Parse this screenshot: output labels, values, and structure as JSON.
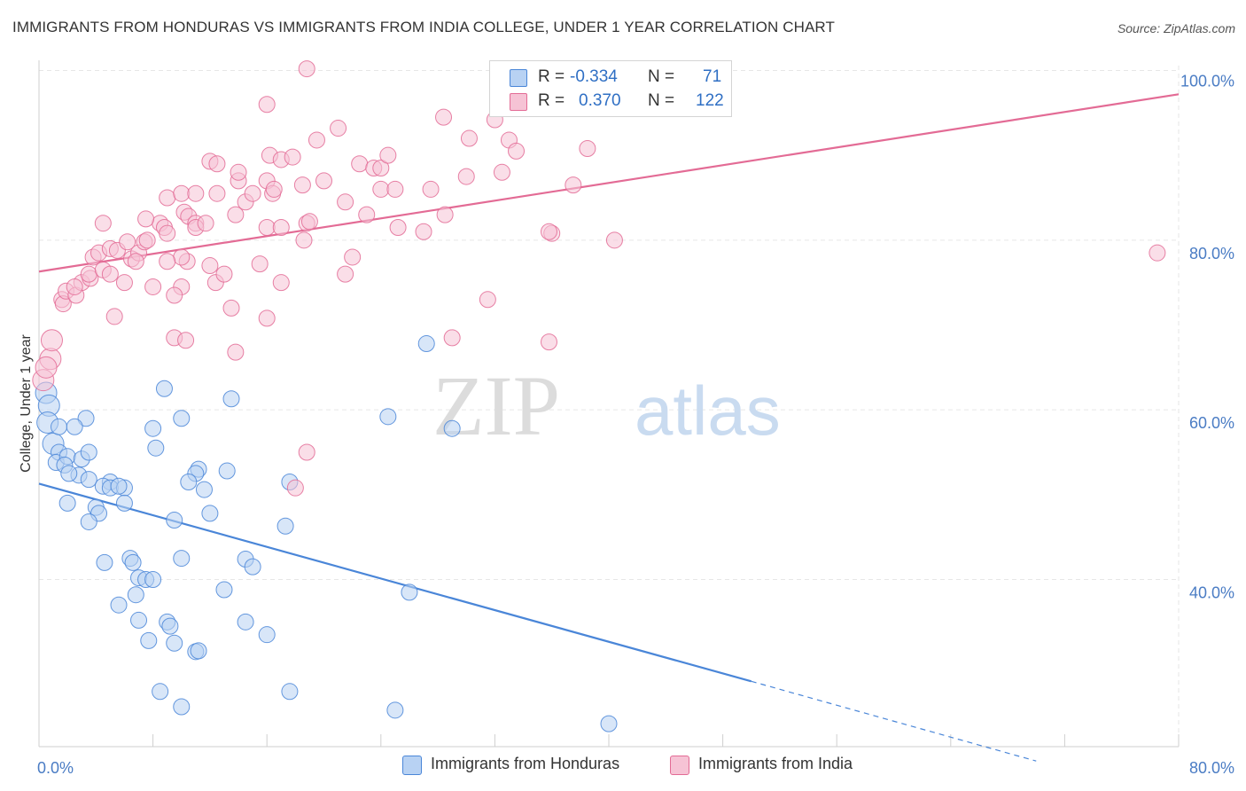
{
  "title": "IMMIGRANTS FROM HONDURAS VS IMMIGRANTS FROM INDIA COLLEGE, UNDER 1 YEAR CORRELATION CHART",
  "source": "Source: ZipAtlas.com",
  "watermark": {
    "zip": "ZIP",
    "atlas": "atlas"
  },
  "colors": {
    "blue": "#4a86d8",
    "blue_fill": "#b8d2f3",
    "pink": "#e36b95",
    "pink_fill": "#f6c3d5",
    "tick_text": "#4a7cc4"
  },
  "legend": {
    "series": [
      {
        "r_label": "R =",
        "r_value": "-0.334",
        "n_label": "N =",
        "n_value": "71"
      },
      {
        "r_label": "R =",
        "r_value": "0.370",
        "n_label": "N =",
        "n_value": "122"
      }
    ]
  },
  "bottom_legend": [
    "Immigrants from Honduras",
    "Immigrants from India"
  ],
  "chart_data": {
    "type": "scatter",
    "xlabel": "",
    "ylabel": "College, Under 1 year",
    "xlim": [
      0,
      80
    ],
    "ylim": [
      20,
      102
    ],
    "x_tick_labels": [
      {
        "value": 0,
        "label": "0.0%"
      },
      {
        "value": 80,
        "label": "80.0%"
      }
    ],
    "y_tick_labels": [
      {
        "value": 40,
        "label": "40.0%"
      },
      {
        "value": 60,
        "label": "60.0%"
      },
      {
        "value": 80,
        "label": "80.0%"
      },
      {
        "value": 100,
        "label": "100.0%"
      }
    ],
    "grid": true,
    "series": [
      {
        "name": "Immigrants from Honduras",
        "color": "#4a86d8",
        "trend": {
          "x0": 0,
          "y0": 51.3,
          "x1": 50,
          "y1": 28.0,
          "dashed_to_x": 70,
          "dashed_to_y": 18.6
        },
        "points": [
          [
            0.5,
            62
          ],
          [
            0.7,
            60.5
          ],
          [
            0.6,
            58.5
          ],
          [
            1,
            56
          ],
          [
            1.4,
            55
          ],
          [
            1.2,
            53.8
          ],
          [
            2,
            54.5
          ],
          [
            3,
            54.2
          ],
          [
            1.8,
            53.5
          ],
          [
            2.8,
            52.3
          ],
          [
            2.1,
            52.5
          ],
          [
            3.5,
            51.8
          ],
          [
            5,
            51.5
          ],
          [
            4.5,
            51
          ],
          [
            5,
            50.8
          ],
          [
            6,
            50.8
          ],
          [
            2,
            49
          ],
          [
            4,
            48.5
          ],
          [
            6,
            49
          ],
          [
            4.2,
            47.8
          ],
          [
            3.5,
            46.8
          ],
          [
            1.4,
            58
          ],
          [
            3.3,
            59
          ],
          [
            2.5,
            58
          ],
          [
            8,
            57.8
          ],
          [
            8.2,
            55.5
          ],
          [
            10,
            59
          ],
          [
            13.5,
            61.3
          ],
          [
            8.8,
            62.5
          ],
          [
            11.2,
            53
          ],
          [
            11,
            52.5
          ],
          [
            10.5,
            51.5
          ],
          [
            13.2,
            52.8
          ],
          [
            11.6,
            50.6
          ],
          [
            17.6,
            51.5
          ],
          [
            12,
            47.8
          ],
          [
            9.5,
            47
          ],
          [
            17.3,
            46.3
          ],
          [
            4.6,
            42
          ],
          [
            6.4,
            42.5
          ],
          [
            6.6,
            42
          ],
          [
            10,
            42.5
          ],
          [
            14.5,
            42.4
          ],
          [
            15,
            41.5
          ],
          [
            7,
            40.2
          ],
          [
            7.5,
            40
          ],
          [
            8,
            40
          ],
          [
            13,
            38.8
          ],
          [
            6.8,
            38.2
          ],
          [
            5.6,
            37
          ],
          [
            7,
            35.2
          ],
          [
            9,
            35
          ],
          [
            9.2,
            34.5
          ],
          [
            14.5,
            35
          ],
          [
            16,
            33.5
          ],
          [
            7.7,
            32.8
          ],
          [
            9.5,
            32.5
          ],
          [
            11,
            31.5
          ],
          [
            11.2,
            31.6
          ],
          [
            8.5,
            26.8
          ],
          [
            17.6,
            26.8
          ],
          [
            10,
            25
          ],
          [
            25,
            24.6
          ],
          [
            40,
            23
          ],
          [
            26,
            38.5
          ],
          [
            27.2,
            67.8
          ],
          [
            29,
            57.8
          ],
          [
            24.5,
            59.2
          ],
          [
            3.5,
            55
          ],
          [
            5.6,
            51
          ]
        ]
      },
      {
        "name": "Immigrants from India",
        "color": "#e36b95",
        "trend": {
          "x0": 0,
          "y0": 76.3,
          "x1": 80,
          "y1": 97.2
        },
        "points": [
          [
            0.3,
            63.5
          ],
          [
            0.8,
            66
          ],
          [
            0.9,
            68.2
          ],
          [
            0.5,
            65
          ],
          [
            1.6,
            73
          ],
          [
            1.7,
            72.5
          ],
          [
            1.9,
            74
          ],
          [
            2.6,
            73.5
          ],
          [
            3,
            75
          ],
          [
            3.6,
            75.5
          ],
          [
            2.5,
            74.5
          ],
          [
            3.5,
            76
          ],
          [
            4.5,
            76.5
          ],
          [
            5,
            76
          ],
          [
            6,
            75
          ],
          [
            3.8,
            78
          ],
          [
            4.2,
            78.5
          ],
          [
            5,
            79
          ],
          [
            5.5,
            78.8
          ],
          [
            6.2,
            79.8
          ],
          [
            6.5,
            77.8
          ],
          [
            7,
            78.5
          ],
          [
            6.8,
            77.5
          ],
          [
            7.4,
            79.8
          ],
          [
            7.6,
            80
          ],
          [
            8.5,
            82
          ],
          [
            8.8,
            81.5
          ],
          [
            9,
            80.8
          ],
          [
            4.5,
            82
          ],
          [
            7.5,
            82.5
          ],
          [
            8,
            74.5
          ],
          [
            10,
            74.5
          ],
          [
            9.5,
            73.5
          ],
          [
            10.4,
            77.5
          ],
          [
            12,
            77
          ],
          [
            12.4,
            75
          ],
          [
            13,
            76
          ],
          [
            10,
            78
          ],
          [
            9,
            77.5
          ],
          [
            5.3,
            71
          ],
          [
            9.5,
            68.5
          ],
          [
            10.3,
            68.2
          ],
          [
            13.5,
            72
          ],
          [
            13.8,
            66.8
          ],
          [
            16,
            70.8
          ],
          [
            17,
            75
          ],
          [
            15.5,
            77.2
          ],
          [
            16,
            81.5
          ],
          [
            17,
            81.5
          ],
          [
            18.6,
            80
          ],
          [
            18.8,
            82
          ],
          [
            19,
            82.2
          ],
          [
            10.2,
            83.3
          ],
          [
            10.5,
            82.8
          ],
          [
            11,
            82
          ],
          [
            11,
            81.5
          ],
          [
            11.7,
            82
          ],
          [
            13.8,
            83
          ],
          [
            9,
            85
          ],
          [
            10,
            85.5
          ],
          [
            11,
            85.5
          ],
          [
            12.5,
            85.5
          ],
          [
            14,
            87
          ],
          [
            14.5,
            84.5
          ],
          [
            15,
            85.5
          ],
          [
            16,
            87
          ],
          [
            16.4,
            85.5
          ],
          [
            16.2,
            90
          ],
          [
            17,
            89.5
          ],
          [
            17.8,
            89.8
          ],
          [
            16.5,
            86
          ],
          [
            18.5,
            86.5
          ],
          [
            14,
            88
          ],
          [
            12,
            89.3
          ],
          [
            12.5,
            89
          ],
          [
            19.5,
            91.8
          ],
          [
            20,
            87
          ],
          [
            21,
            93.2
          ],
          [
            21.5,
            84.5
          ],
          [
            22,
            78
          ],
          [
            23,
            83
          ],
          [
            22.5,
            89
          ],
          [
            23.5,
            88.5
          ],
          [
            24,
            88.5
          ],
          [
            24,
            86
          ],
          [
            25,
            86
          ],
          [
            24.5,
            90
          ],
          [
            25.2,
            81.5
          ],
          [
            27,
            81
          ],
          [
            28.5,
            83
          ],
          [
            27.5,
            86
          ],
          [
            28.4,
            94.5
          ],
          [
            30,
            87.5
          ],
          [
            30.2,
            92
          ],
          [
            32,
            94.2
          ],
          [
            32.5,
            88
          ],
          [
            33,
            91.8
          ],
          [
            33.5,
            90.5
          ],
          [
            36,
            80.8
          ],
          [
            35.8,
            81
          ],
          [
            37.5,
            86.5
          ],
          [
            38.5,
            90.8
          ],
          [
            40.4,
            80
          ],
          [
            21.5,
            76
          ],
          [
            18.8,
            55
          ],
          [
            18,
            50.8
          ],
          [
            29,
            68.5
          ],
          [
            31.5,
            73
          ],
          [
            35.8,
            68
          ],
          [
            16,
            96
          ],
          [
            18.8,
            100.2
          ],
          [
            78.5,
            78.5
          ]
        ]
      }
    ]
  }
}
